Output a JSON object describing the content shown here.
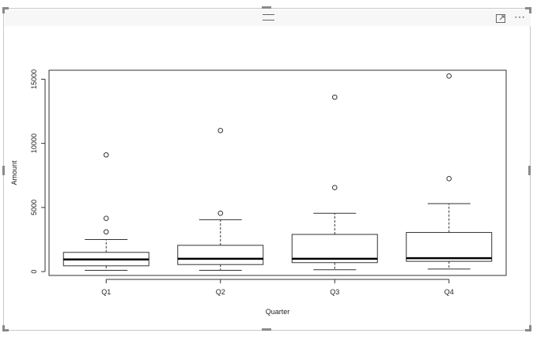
{
  "visual": {
    "focus_mode_icon": "focus-mode-icon",
    "more_options_icon": "more-options-icon",
    "more_options_label": "⋯"
  },
  "chart_data": {
    "type": "boxplot",
    "xlabel": "Quarter",
    "ylabel": "Amount",
    "ylim": [
      -300,
      15700
    ],
    "yticks": [
      0,
      5000,
      10000,
      15000
    ],
    "ytick_labels": [
      "0",
      "5000",
      "10000",
      "15000"
    ],
    "categories": [
      "Q1",
      "Q2",
      "Q3",
      "Q4"
    ],
    "boxes": [
      {
        "label": "Q1",
        "whisker_low": 100,
        "q1": 450,
        "median": 950,
        "q3": 1500,
        "whisker_high": 2500,
        "outliers": [
          3100,
          4150,
          9100
        ]
      },
      {
        "label": "Q2",
        "whisker_low": 100,
        "q1": 550,
        "median": 1000,
        "q3": 2050,
        "whisker_high": 4050,
        "outliers": [
          4550,
          11000
        ]
      },
      {
        "label": "Q3",
        "whisker_low": 150,
        "q1": 700,
        "median": 1000,
        "q3": 2900,
        "whisker_high": 4550,
        "outliers": [
          6550,
          13600
        ]
      },
      {
        "label": "Q4",
        "whisker_low": 200,
        "q1": 800,
        "median": 1050,
        "q3": 3050,
        "whisker_high": 5300,
        "outliers": [
          7250,
          15250
        ]
      }
    ],
    "grid": false,
    "legend": "none"
  }
}
